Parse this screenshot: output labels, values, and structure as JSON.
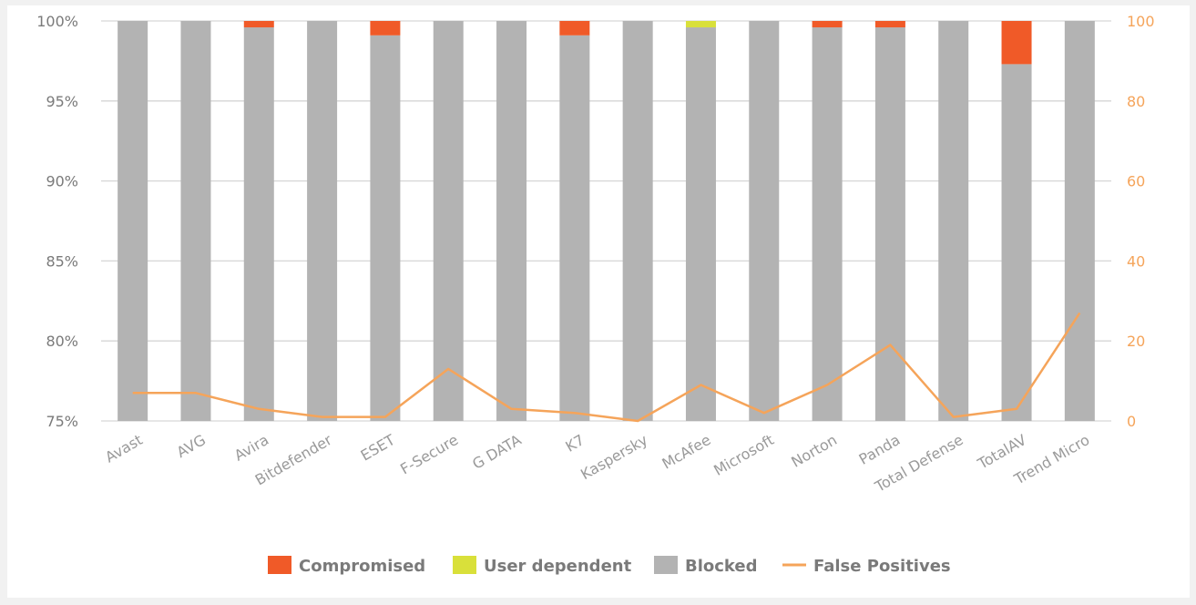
{
  "chart_data": {
    "type": "bar",
    "stacked": true,
    "categories": [
      "Avast",
      "AVG",
      "Avira",
      "Bitdefender",
      "ESET",
      "F-Secure",
      "G DATA",
      "K7",
      "Kaspersky",
      "McAfee",
      "Microsoft",
      "Norton",
      "Panda",
      "Total Defense",
      "TotalAV",
      "Trend Micro"
    ],
    "series": [
      {
        "name": "Blocked",
        "values": [
          100,
          100,
          99.6,
          100,
          99.1,
          100,
          100,
          99.1,
          100,
          99.6,
          100,
          99.6,
          99.6,
          100,
          97.3,
          100
        ]
      },
      {
        "name": "User dependent",
        "values": [
          0,
          0,
          0,
          0,
          0,
          0,
          0,
          0,
          0,
          0.4,
          0,
          0,
          0,
          0,
          0,
          0
        ]
      },
      {
        "name": "Compromised",
        "values": [
          0,
          0,
          0.4,
          0,
          0.9,
          0,
          0,
          0.9,
          0,
          0,
          0,
          0.4,
          0.4,
          0,
          2.7,
          0
        ]
      }
    ],
    "line_series": {
      "name": "False Positives",
      "axis": "right",
      "values": [
        7,
        7,
        3,
        1,
        1,
        13,
        3,
        2,
        0,
        9,
        2,
        9,
        19,
        1,
        3,
        27
      ]
    },
    "y_left": {
      "ylim": [
        75,
        100
      ],
      "ticks": [
        "75%",
        "80%",
        "85%",
        "90%",
        "95%",
        "100%"
      ],
      "tick_values": [
        75,
        80,
        85,
        90,
        95,
        100
      ]
    },
    "y_right": {
      "ylim": [
        0,
        100
      ],
      "ticks": [
        "0",
        "20",
        "40",
        "60",
        "80",
        "100"
      ],
      "tick_values": [
        0,
        20,
        40,
        60,
        80,
        100
      ]
    },
    "legend": {
      "placement": "bottom-center",
      "items": [
        {
          "label": "Compromised",
          "kind": "box",
          "color": "#f05a28"
        },
        {
          "label": "User dependent",
          "kind": "box",
          "color": "#d9e03a"
        },
        {
          "label": "Blocked",
          "kind": "box",
          "color": "#b3b3b3"
        },
        {
          "label": "False Positives",
          "kind": "line",
          "color": "#f5a45a"
        }
      ]
    },
    "colors": {
      "Blocked": "#b3b3b3",
      "User dependent": "#d9e03a",
      "Compromised": "#f05a28",
      "False Positives": "#f5a45a",
      "grid": "#d6d6d6"
    },
    "grid": true
  }
}
